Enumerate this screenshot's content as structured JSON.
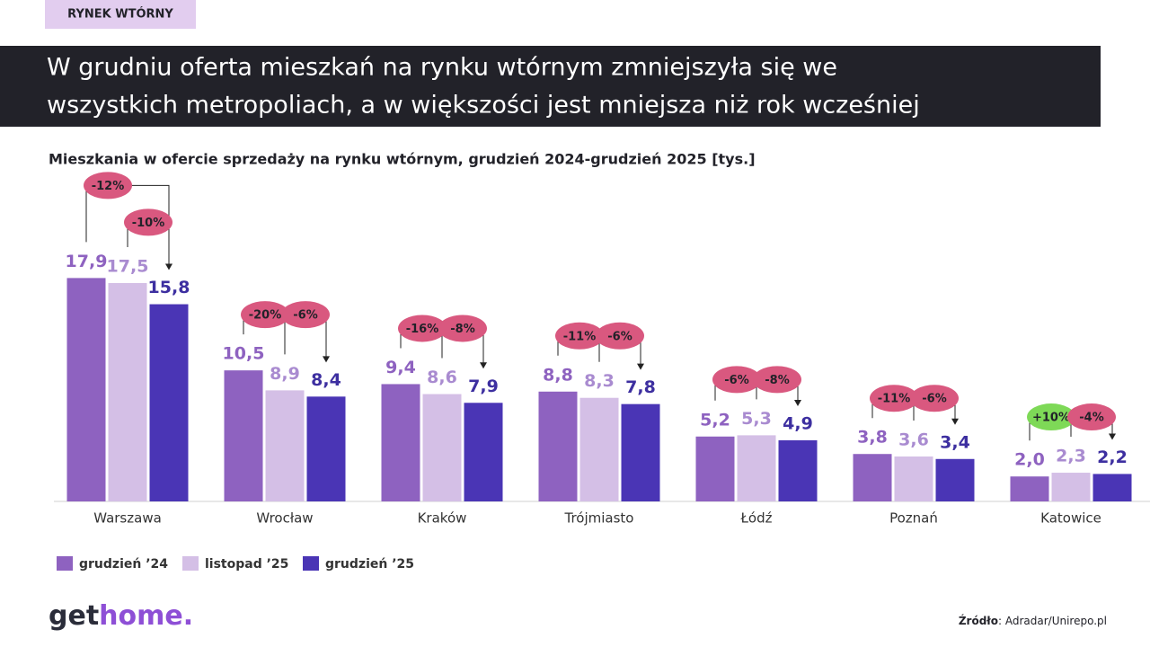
{
  "tag": "RYNEK WTÓRNY",
  "headline": [
    "W grudniu oferta mieszkań na rynku wtórnym zmniejszyła się we",
    "wszystkich metropoliach, a w większości jest mniejsza niż rok wcześniej"
  ],
  "logo": [
    "get",
    "home."
  ],
  "source": {
    "label": "Źródło",
    "text": ": Adradar/Unirepo.pl"
  },
  "chart_data": {
    "type": "bar",
    "title": "Mieszkania w ofercie sprzedaży na rynku wtórnym, grudzień 2024-grudzień 2025  [tys.]",
    "categories": [
      "Warszawa",
      "Wrocław",
      "Kraków",
      "Trójmiasto",
      "Łódź",
      "Poznań",
      "Katowice"
    ],
    "series": [
      {
        "name": "grudzień ’24",
        "color": "#8e62c0",
        "values": [
          17.9,
          10.5,
          9.4,
          8.8,
          5.2,
          3.8,
          2.0
        ],
        "value_labels": [
          "17,9",
          "10,5",
          "9,4",
          "8,8",
          "5,2",
          "3,8",
          "2,0"
        ]
      },
      {
        "name": "listopad ’25",
        "color": "#d4bfe6",
        "values": [
          17.5,
          8.9,
          8.6,
          8.3,
          5.3,
          3.6,
          2.3
        ],
        "value_labels": [
          "17,5",
          "8,9",
          "8,6",
          "8,3",
          "5,3",
          "3,6",
          "2,3"
        ]
      },
      {
        "name": "grudzień ’25",
        "color": "#4a35b5",
        "values": [
          15.8,
          8.4,
          7.9,
          7.8,
          4.9,
          3.4,
          2.2
        ],
        "value_labels": [
          "15,8",
          "8,4",
          "7,9",
          "7,8",
          "4,9",
          "3,4",
          "2,2"
        ]
      }
    ],
    "yoy_change": [
      "-12%",
      "-20%",
      "-16%",
      "-11%",
      "-6%",
      "-11%",
      "+10%"
    ],
    "mom_change": [
      "-10%",
      "-6%",
      "-8%",
      "-6%",
      "-8%",
      "-6%",
      "-4%"
    ],
    "ylim": [
      0,
      18
    ],
    "legend": "bottom-left"
  }
}
